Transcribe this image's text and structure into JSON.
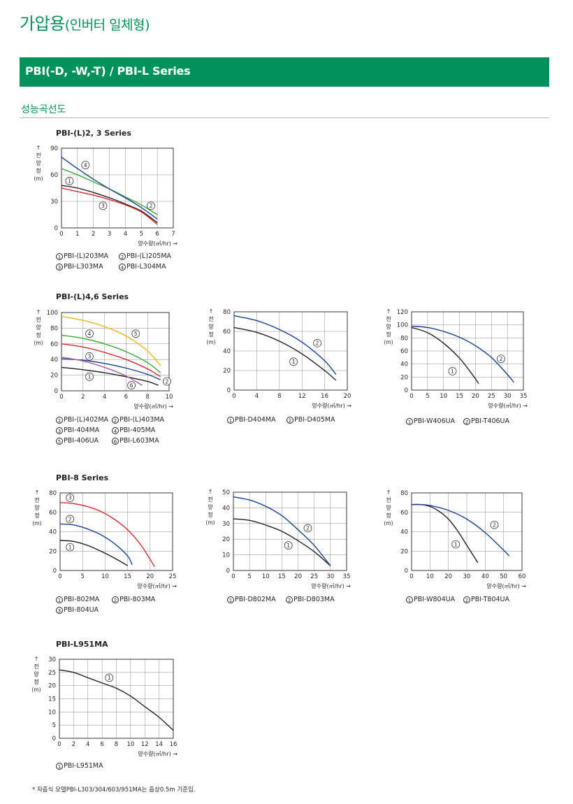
{
  "header": {
    "title_main": "가압용",
    "title_paren": "(인버터 일체형)",
    "series_banner": "PBI(-D, -W,-T) / PBI-L Series",
    "section_title": "성능곡선도"
  },
  "groups": {
    "g1": "PBI-(L)2, 3 Series",
    "g2": "PBI-(L)4,6 Series",
    "g3": "PBI-8 Series",
    "g4": "PBI-L951MA"
  },
  "axis_text": {
    "y_label": [
      "↑",
      "전",
      "양",
      "정",
      "(m)"
    ],
    "x_label": "양수량(㎥/hr) →"
  },
  "colors": {
    "black": "#231f20",
    "red": "#d7282f",
    "green": "#3aa935",
    "navy": "#1b3f8f",
    "yellow": "#f2b51a",
    "purple": "#a45ea6",
    "grid": "#8a8a8a"
  },
  "footnote": "* 자흡식 모델PBI-L303/304/603/951MA는 흡상0.5m 기준임.",
  "chart_data": [
    {
      "type": "line",
      "group": "PBI-(L)2, 3 Series",
      "xlabel": "양수량(㎥/hr) →",
      "ylabel": "전양정(m)",
      "xlim": [
        0,
        7
      ],
      "ylim": [
        0,
        90
      ],
      "xticks": [
        "0",
        "1",
        "2",
        "3",
        "4",
        "5",
        "6",
        "7"
      ],
      "yticks": [
        "0",
        "30",
        "60",
        "90"
      ],
      "series": [
        {
          "name": "PBI-(L)203MA",
          "marker": "1",
          "color": "black",
          "x": [
            0,
            1,
            2,
            3,
            4,
            5,
            6
          ],
          "y": [
            48,
            45,
            40,
            34,
            27,
            19,
            6
          ],
          "label_at": [
            0.5,
            53
          ]
        },
        {
          "name": "PBI-(L)205MA",
          "marker": "2",
          "color": "green",
          "x": [
            0,
            1,
            2,
            3,
            4,
            5,
            6
          ],
          "y": [
            67,
            60,
            52,
            44,
            35,
            26,
            15
          ],
          "label_at": [
            5.6,
            25
          ]
        },
        {
          "name": "PBI-L303MA",
          "marker": "3",
          "color": "red",
          "x": [
            0,
            1,
            2,
            3,
            4,
            5,
            6
          ],
          "y": [
            45,
            41,
            37,
            32,
            26,
            18,
            4
          ],
          "label_at": [
            2.6,
            25
          ]
        },
        {
          "name": "PBI-L304MA",
          "marker": "4",
          "color": "navy",
          "x": [
            0,
            1,
            2,
            3,
            4,
            5,
            6
          ],
          "y": [
            80,
            67,
            55,
            44,
            34,
            23,
            10
          ],
          "label_at": [
            1.5,
            71
          ]
        }
      ]
    },
    {
      "type": "line",
      "group": "PBI-(L)4,6 Series",
      "xlabel": "양수량(㎥/hr) →",
      "ylabel": "전양정(m)",
      "xlim": [
        0,
        10
      ],
      "ylim": [
        0,
        100
      ],
      "xticks": [
        "0",
        "2",
        "4",
        "6",
        "8",
        "10"
      ],
      "yticks": [
        "0",
        "20",
        "40",
        "60",
        "80",
        "100"
      ],
      "series": [
        {
          "name": "PBI-(L)402MA",
          "marker": "1",
          "color": "black",
          "x": [
            0,
            2,
            4,
            6,
            8,
            9
          ],
          "y": [
            30,
            27,
            23,
            18,
            12,
            7
          ],
          "label_at": [
            2.6,
            18
          ]
        },
        {
          "name": "PBI-(L)403MA",
          "marker": "2",
          "color": "red",
          "x": [
            0,
            2,
            4,
            6,
            8,
            9.2
          ],
          "y": [
            60,
            56,
            49,
            40,
            28,
            18
          ],
          "label_at": [
            9.8,
            12
          ]
        },
        {
          "name": "PBI-404MA",
          "marker": "3",
          "color": "navy",
          "x": [
            0,
            2,
            4,
            6,
            8,
            9.2
          ],
          "y": [
            41,
            39,
            35,
            29,
            21,
            14
          ],
          "label_at": [
            2.6,
            44
          ]
        },
        {
          "name": "PBI-405MA",
          "marker": "4",
          "color": "green",
          "x": [
            0,
            2,
            4,
            6,
            8,
            9.2
          ],
          "y": [
            71,
            67,
            60,
            50,
            36,
            23
          ],
          "label_at": [
            2.6,
            73
          ]
        },
        {
          "name": "PBI-406UA",
          "marker": "5",
          "color": "yellow",
          "x": [
            0,
            2,
            4,
            6,
            8,
            9.2
          ],
          "y": [
            95,
            90,
            82,
            70,
            51,
            32
          ],
          "label_at": [
            6.9,
            73
          ]
        },
        {
          "name": "PBI-L603MA",
          "marker": "6",
          "color": "purple",
          "x": [
            0,
            2,
            4,
            6,
            7.5
          ],
          "y": [
            43,
            38,
            30,
            19,
            7
          ],
          "label_at": [
            6.5,
            7
          ]
        }
      ]
    },
    {
      "type": "line",
      "group": "PBI-(L)4,6 Series",
      "xlabel": "양수량(㎥/hr) →",
      "ylabel": "전양정(m)",
      "xlim": [
        0,
        20
      ],
      "ylim": [
        0,
        80
      ],
      "xticks": [
        "0",
        "4",
        "8",
        "12",
        "16",
        "20"
      ],
      "yticks": [
        "0",
        "20",
        "40",
        "60",
        "80"
      ],
      "series": [
        {
          "name": "PBI-D404MA",
          "marker": "1",
          "color": "black",
          "x": [
            0,
            4,
            8,
            12,
            16,
            18
          ],
          "y": [
            64,
            59,
            50,
            37,
            20,
            10
          ],
          "label_at": [
            10.5,
            29
          ]
        },
        {
          "name": "PBI-D405MA",
          "marker": "2",
          "color": "navy",
          "x": [
            0,
            4,
            8,
            12,
            16,
            18
          ],
          "y": [
            76,
            71,
            62,
            49,
            30,
            16
          ],
          "label_at": [
            14.7,
            48
          ]
        }
      ]
    },
    {
      "type": "line",
      "group": "PBI-(L)4,6 Series",
      "xlabel": "양수량(㎥/hr) →",
      "ylabel": "전양정(m)",
      "xlim": [
        0,
        35
      ],
      "ylim": [
        0,
        120
      ],
      "xticks": [
        "0",
        "5",
        "10",
        "15",
        "20",
        "25",
        "30",
        "35"
      ],
      "yticks": [
        "0",
        "20",
        "40",
        "60",
        "80",
        "100",
        "120"
      ],
      "series": [
        {
          "name": "PBI-W406UA",
          "marker": "1",
          "color": "black",
          "x": [
            0,
            5,
            10,
            15,
            19,
            21
          ],
          "y": [
            96,
            88,
            72,
            49,
            24,
            10
          ],
          "label_at": [
            12.8,
            29
          ]
        },
        {
          "name": "PBI-T406UA",
          "marker": "2",
          "color": "navy",
          "x": [
            0,
            5,
            10,
            15,
            20,
            25,
            30,
            32
          ],
          "y": [
            98,
            96,
            90,
            81,
            68,
            50,
            24,
            12
          ],
          "label_at": [
            28,
            48
          ]
        }
      ]
    },
    {
      "type": "line",
      "group": "PBI-8 Series",
      "xlabel": "양수량(㎥/hr) →",
      "ylabel": "전양정(m)",
      "xlim": [
        0,
        25
      ],
      "ylim": [
        0,
        80
      ],
      "xticks": [
        "0",
        "5",
        "10",
        "15",
        "20",
        "25"
      ],
      "yticks": [
        "0",
        "20",
        "40",
        "60",
        "80"
      ],
      "series": [
        {
          "name": "PBI-802MA",
          "marker": "1",
          "color": "black",
          "x": [
            0,
            3,
            6,
            9,
            12,
            15
          ],
          "y": [
            31,
            30,
            26,
            20,
            13,
            5
          ],
          "label_at": [
            2.2,
            24
          ]
        },
        {
          "name": "PBI-803MA",
          "marker": "2",
          "color": "navy",
          "x": [
            0,
            3,
            6,
            9,
            12,
            15,
            16
          ],
          "y": [
            48,
            47,
            43,
            37,
            28,
            15,
            6
          ],
          "label_at": [
            2.2,
            53
          ]
        },
        {
          "name": "PBI-804UA",
          "marker": "3",
          "color": "red",
          "x": [
            0,
            3,
            6,
            9,
            12,
            15,
            18,
            21
          ],
          "y": [
            70,
            69,
            66,
            61,
            53,
            42,
            26,
            4
          ],
          "label_at": [
            2.2,
            75
          ]
        }
      ]
    },
    {
      "type": "line",
      "group": "PBI-8 Series",
      "xlabel": "양수량(㎥/hr) →",
      "ylabel": "전양정(m)",
      "xlim": [
        0,
        35
      ],
      "ylim": [
        0,
        50
      ],
      "xticks": [
        "0",
        "5",
        "10",
        "15",
        "20",
        "25",
        "30",
        "35"
      ],
      "yticks": [
        "0",
        "10",
        "20",
        "30",
        "40",
        "50"
      ],
      "series": [
        {
          "name": "PBI-D802MA",
          "marker": "1",
          "color": "black",
          "x": [
            0,
            5,
            10,
            15,
            20,
            25,
            30
          ],
          "y": [
            33,
            32,
            29,
            25,
            19,
            12,
            3
          ],
          "label_at": [
            17,
            16
          ]
        },
        {
          "name": "PBI-D803MA",
          "marker": "2",
          "color": "navy",
          "x": [
            0,
            5,
            10,
            15,
            20,
            25,
            30
          ],
          "y": [
            47,
            45,
            41,
            35,
            26,
            16,
            3
          ],
          "label_at": [
            23,
            27
          ]
        }
      ]
    },
    {
      "type": "line",
      "group": "PBI-8 Series",
      "xlabel": "양수량(㎥/hr) →",
      "ylabel": "전양정(m)",
      "xlim": [
        0,
        60
      ],
      "ylim": [
        0,
        80
      ],
      "xticks": [
        "0",
        "10",
        "20",
        "30",
        "40",
        "50",
        "60"
      ],
      "yticks": [
        "0",
        "20",
        "40",
        "60",
        "80"
      ],
      "series": [
        {
          "name": "PBI-W804UA",
          "marker": "1",
          "color": "black",
          "x": [
            0,
            5,
            10,
            15,
            20,
            25,
            30,
            36
          ],
          "y": [
            68,
            68,
            66,
            61,
            53,
            41,
            26,
            8
          ],
          "label_at": [
            24,
            27
          ]
        },
        {
          "name": "PBI-T804UA",
          "marker": "2",
          "color": "navy",
          "x": [
            0,
            5,
            10,
            20,
            30,
            40,
            50,
            53
          ],
          "y": [
            68,
            68,
            67,
            62,
            53,
            39,
            21,
            15
          ],
          "label_at": [
            45,
            47
          ]
        }
      ]
    },
    {
      "type": "line",
      "group": "PBI-L951MA",
      "xlabel": "양수량(㎥/hr) →",
      "ylabel": "전양정(m)",
      "xlim": [
        0,
        16
      ],
      "ylim": [
        0,
        30
      ],
      "xticks": [
        "0",
        "2",
        "4",
        "6",
        "8",
        "10",
        "12",
        "14",
        "16"
      ],
      "yticks": [
        "0",
        "5",
        "10",
        "15",
        "20",
        "25",
        "30"
      ],
      "series": [
        {
          "name": "PBI-L951MA",
          "marker": "1",
          "color": "black",
          "x": [
            0,
            2,
            4,
            6,
            8,
            10,
            12,
            14,
            16
          ],
          "y": [
            26,
            25,
            23,
            21,
            19,
            16,
            12,
            8,
            3
          ],
          "label_at": [
            7,
            23
          ]
        }
      ]
    }
  ]
}
